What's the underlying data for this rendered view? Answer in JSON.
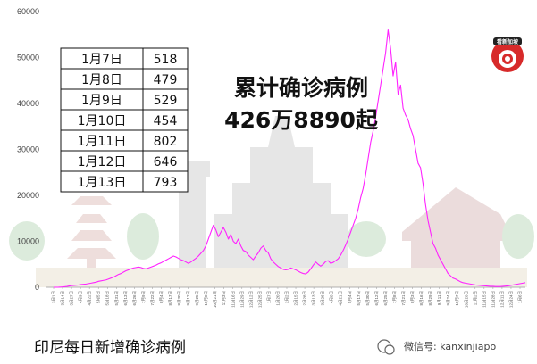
{
  "chart_data": {
    "type": "line",
    "title": "",
    "xlabel": "",
    "ylabel": "",
    "ylim": [
      0,
      60000
    ],
    "yticks": [
      0,
      10000,
      20000,
      30000,
      40000,
      50000,
      60000
    ],
    "grid": false,
    "color": "#ff22ff",
    "x_tick_labels": [
      "3月1日",
      "3月14日",
      "3月27日",
      "4月9日",
      "4月22日",
      "5月5日",
      "5月18日",
      "5月31日",
      "6月13日",
      "6月26日",
      "7月9日",
      "7月22日",
      "8月4日",
      "8月17日",
      "8月30日",
      "9月12日",
      "9月25日",
      "10月8日",
      "10月21日",
      "11月3日",
      "11月16日",
      "11月29日",
      "12月12日",
      "12月25日",
      "1月7日",
      "1月20日",
      "2月2日",
      "2月15日",
      "2月28日",
      "3月13日",
      "3月26日",
      "4月8日",
      "4月21日",
      "5月4日",
      "5月17日",
      "5月30日",
      "6月12日",
      "6月25日",
      "7月8日",
      "7月21日",
      "8月3日",
      "8月16日",
      "8月29日",
      "9月11日",
      "9月24日",
      "10月7日",
      "10月20日",
      "11月2日",
      "11月15日",
      "11月28日",
      "12月11日",
      "12月24日",
      "1月6日"
    ],
    "series": [
      {
        "values": [
          0,
          0,
          10,
          50,
          100,
          150,
          250,
          350,
          400,
          450,
          500,
          600,
          650,
          700,
          800,
          900,
          1000,
          1100,
          1300,
          1400,
          1500,
          1600,
          1800,
          2000,
          2200,
          2500,
          2800,
          3000,
          3300,
          3600,
          3800,
          4000,
          4200,
          4300,
          4400,
          4300,
          4100,
          4000,
          4200,
          4400,
          4600,
          4800,
          5100,
          5300,
          5600,
          5900,
          6200,
          6500,
          6800,
          6600,
          6300,
          6000,
          5800,
          5500,
          5200,
          5500,
          5900,
          6300,
          6800,
          7400,
          8000,
          9000,
          10500,
          12000,
          13500,
          12500,
          11000,
          12000,
          13000,
          12000,
          10500,
          11500,
          10000,
          9500,
          10500,
          9000,
          8000,
          7800,
          7000,
          6500,
          6000,
          6800,
          7500,
          8500,
          9000,
          8000,
          7500,
          6200,
          5500,
          5000,
          4500,
          4200,
          3900,
          3800,
          3900,
          4200,
          4000,
          3800,
          3500,
          3200,
          3000,
          2900,
          3300,
          4000,
          4800,
          5500,
          5000,
          4600,
          5000,
          5600,
          5800,
          5200,
          5400,
          5800,
          6200,
          7000,
          8000,
          9200,
          10500,
          12000,
          13500,
          15000,
          17000,
          19500,
          21500,
          24500,
          28000,
          31500,
          34000,
          37000,
          40500,
          44000,
          47500,
          51000,
          56000,
          52000,
          46000,
          49000,
          42000,
          44000,
          39000,
          37500,
          36500,
          34500,
          33000,
          30000,
          27000,
          26000,
          22500,
          18000,
          14500,
          12000,
          9500,
          8500,
          7000,
          6000,
          5000,
          4000,
          3000,
          2500,
          2000,
          1800,
          1500,
          1200,
          1000,
          900,
          800,
          700,
          600,
          500,
          450,
          400,
          350,
          300,
          250,
          200,
          200,
          150,
          150,
          150,
          200,
          250,
          300,
          400,
          500,
          600,
          700,
          800,
          900,
          1000
        ]
      }
    ]
  },
  "table": {
    "rows": [
      {
        "date": "1月7日",
        "value": "518"
      },
      {
        "date": "1月8日",
        "value": "479"
      },
      {
        "date": "1月9日",
        "value": "529"
      },
      {
        "date": "1月10日",
        "value": "454"
      },
      {
        "date": "1月11日",
        "value": "802"
      },
      {
        "date": "1月12日",
        "value": "646"
      },
      {
        "date": "1月13日",
        "value": "793"
      }
    ]
  },
  "headline": {
    "line1": "累计确诊病例",
    "line2": "426万8890起"
  },
  "caption": "印尼每日新增确诊病例",
  "watermark": {
    "label": "微信号: kanxinjiapo",
    "logo_text": "看新加坡"
  }
}
